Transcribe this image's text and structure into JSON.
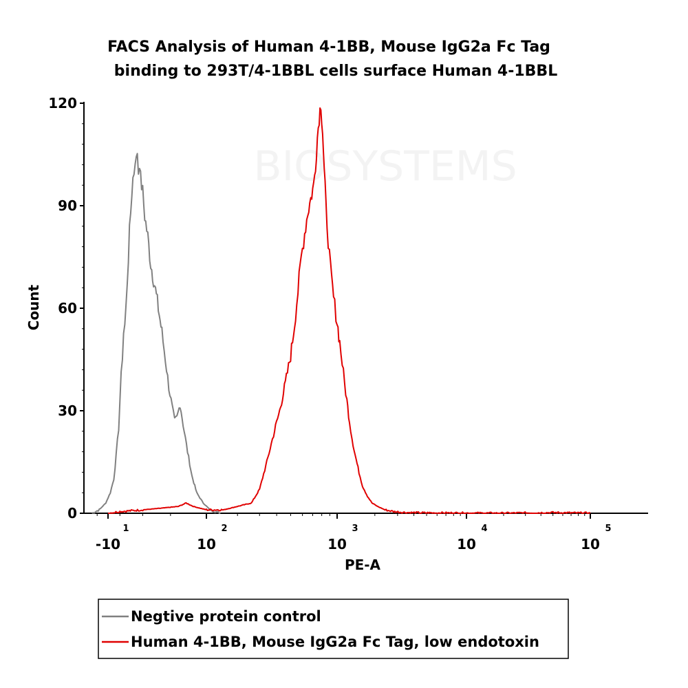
{
  "chart_data": {
    "type": "line",
    "title_lines": [
      "FACS Analysis of  Human 4-1BB,  Mouse IgG2a Fc Tag",
      "binding to 293T/4-1BBL cells surface Human 4-1BBL"
    ],
    "xlabel": "PE-A",
    "ylabel": "Count",
    "x_scale": "biexponential",
    "x_ticks": [
      {
        "base": "-10",
        "exp": "1",
        "value": -10
      },
      {
        "base": "10",
        "exp": "2",
        "value": 100
      },
      {
        "base": "10",
        "exp": "3",
        "value": 1000
      },
      {
        "base": "10",
        "exp": "4",
        "value": 10000
      },
      {
        "base": "10",
        "exp": "5",
        "value": 100000
      }
    ],
    "y_ticks": [
      0,
      30,
      60,
      90,
      120
    ],
    "ylim": [
      0,
      120
    ],
    "grid": false,
    "legend_position": "bottom",
    "watermark": "BIOSYSTEMS",
    "series": [
      {
        "name": "Negtive protein control",
        "color": "#808080",
        "points": [
          [
            -25,
            0
          ],
          [
            -18,
            1
          ],
          [
            -12,
            3
          ],
          [
            -8,
            6
          ],
          [
            -5,
            10
          ],
          [
            -3,
            17
          ],
          [
            -1,
            25
          ],
          [
            0,
            33
          ],
          [
            1,
            40
          ],
          [
            2,
            46
          ],
          [
            3,
            53
          ],
          [
            4,
            55
          ],
          [
            5,
            60
          ],
          [
            6,
            68
          ],
          [
            7,
            75
          ],
          [
            8,
            82
          ],
          [
            9,
            88
          ],
          [
            10,
            94
          ],
          [
            11,
            98
          ],
          [
            12,
            100
          ],
          [
            13,
            104
          ],
          [
            14,
            103
          ],
          [
            15,
            106
          ],
          [
            16,
            100
          ],
          [
            17,
            103
          ],
          [
            18,
            98
          ],
          [
            20,
            94
          ],
          [
            22,
            87
          ],
          [
            25,
            81
          ],
          [
            28,
            73
          ],
          [
            32,
            67
          ],
          [
            36,
            60
          ],
          [
            40,
            53
          ],
          [
            44,
            45
          ],
          [
            48,
            37
          ],
          [
            52,
            31
          ],
          [
            55,
            27
          ],
          [
            58,
            28
          ],
          [
            62,
            32
          ],
          [
            66,
            26
          ],
          [
            72,
            18
          ],
          [
            78,
            11
          ],
          [
            85,
            6
          ],
          [
            95,
            3
          ],
          [
            110,
            1
          ],
          [
            140,
            0
          ]
        ]
      },
      {
        "name": "Human 4-1BB, Mouse IgG2a Fc Tag, low endotoxin",
        "color": "#e00000",
        "points": [
          [
            -10,
            0
          ],
          [
            0,
            0.5
          ],
          [
            20,
            1
          ],
          [
            40,
            1.5
          ],
          [
            60,
            2
          ],
          [
            70,
            3
          ],
          [
            80,
            2
          ],
          [
            100,
            1
          ],
          [
            150,
            1
          ],
          [
            200,
            2
          ],
          [
            260,
            3
          ],
          [
            300,
            7
          ],
          [
            340,
            15
          ],
          [
            380,
            23
          ],
          [
            420,
            30
          ],
          [
            460,
            38
          ],
          [
            500,
            46
          ],
          [
            530,
            55
          ],
          [
            560,
            65
          ],
          [
            590,
            75
          ],
          [
            620,
            82
          ],
          [
            650,
            88
          ],
          [
            680,
            92
          ],
          [
            710,
            96
          ],
          [
            730,
            102
          ],
          [
            750,
            110
          ],
          [
            770,
            116
          ],
          [
            790,
            120
          ],
          [
            810,
            112
          ],
          [
            830,
            100
          ],
          [
            850,
            90
          ],
          [
            880,
            80
          ],
          [
            910,
            71
          ],
          [
            950,
            63
          ],
          [
            1000,
            56
          ],
          [
            1050,
            50
          ],
          [
            1100,
            44
          ],
          [
            1150,
            38
          ],
          [
            1200,
            33
          ],
          [
            1260,
            27
          ],
          [
            1320,
            22
          ],
          [
            1400,
            17
          ],
          [
            1500,
            12
          ],
          [
            1600,
            8
          ],
          [
            1750,
            5
          ],
          [
            1900,
            3
          ],
          [
            2100,
            2
          ],
          [
            2400,
            1
          ],
          [
            2800,
            0.5
          ],
          [
            3500,
            0.2
          ],
          [
            5000,
            0.1
          ],
          [
            20000,
            0
          ],
          [
            50000,
            0.2
          ],
          [
            100000,
            0
          ]
        ]
      }
    ]
  }
}
